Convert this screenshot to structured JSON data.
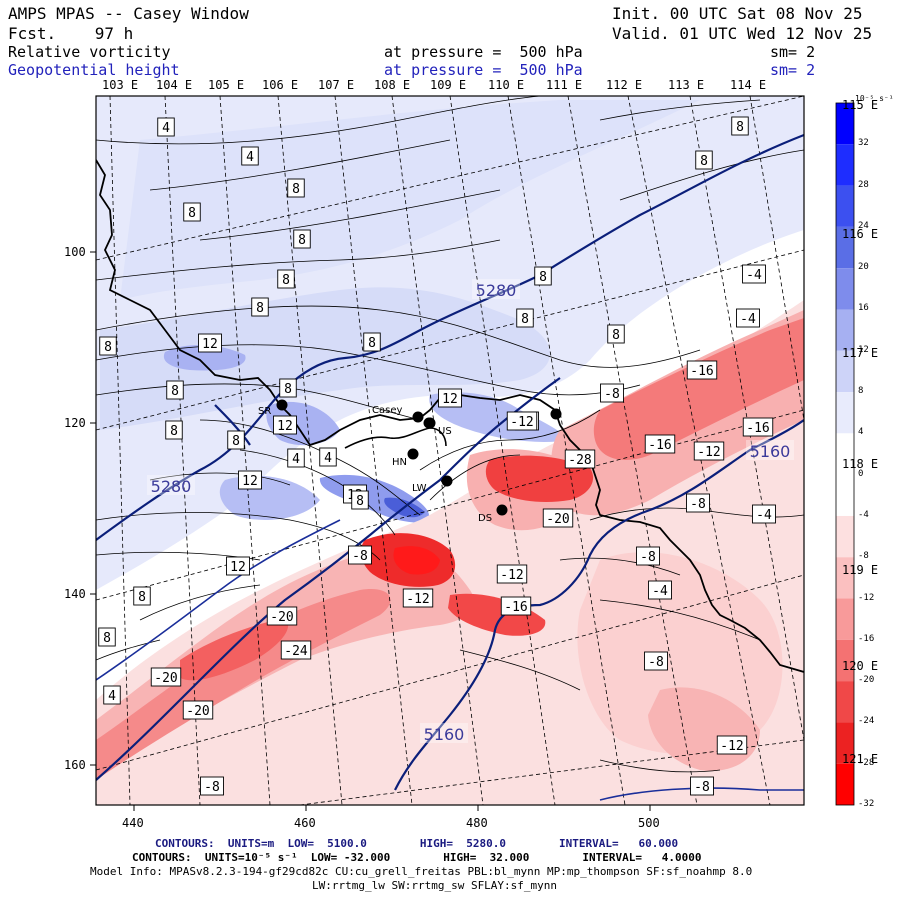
{
  "header": {
    "title": "AMPS MPAS -- Casey Window",
    "forecast": "Fcst.    97 h",
    "init": "Init. 00 UTC Sat 08 Nov 25",
    "valid": "Valid. 01 UTC Wed 12 Nov 25",
    "field1": {
      "name": "Relative vorticity",
      "level": "at pressure =  500 hPa",
      "sm": "sm= 2"
    },
    "field2": {
      "name": "Geopotential height",
      "level": "at pressure =  500 hPa",
      "sm": "sm= 2"
    }
  },
  "axes": {
    "top_lon_labels": [
      "103 E",
      "104 E",
      "105 E",
      "106 E",
      "107 E",
      "108 E",
      "109 E",
      "110 E",
      "111 E",
      "112 E",
      "113 E",
      "114 E"
    ],
    "right_lon_labels": [
      "115 E",
      "116 E",
      "117 E",
      "118 E",
      "119 E",
      "120 E",
      "121 E"
    ],
    "y_ticks": [
      "100",
      "120",
      "140",
      "160"
    ],
    "x_ticks": [
      "440",
      "460",
      "480",
      "500"
    ]
  },
  "colorbar": {
    "unit": "10⁻⁵ s⁻¹",
    "labels": [
      "32",
      "28",
      "24",
      "20",
      "16",
      "12",
      "8",
      "4",
      "0",
      "-4",
      "-8",
      "-12",
      "-16",
      "-20",
      "-24",
      "-28",
      "-32"
    ],
    "colors": [
      "#0000ff",
      "#1e2dff",
      "#3c50f0",
      "#5a6ee6",
      "#7e8cec",
      "#a6b0f2",
      "#cdd3f8",
      "#e8ebfc",
      "#ffffff",
      "#ffffff",
      "#fde0e0",
      "#fbc0c0",
      "#f89a9a",
      "#f47272",
      "#f04848",
      "#ec2222",
      "#ff0000"
    ]
  },
  "map": {
    "height_contours": [
      "5280",
      "5280",
      "5160",
      "5160"
    ],
    "vorticity_labels": [
      "4",
      "4",
      "8",
      "8",
      "8",
      "8",
      "8",
      "8",
      "8",
      "8",
      "8",
      "8",
      "8",
      "8",
      "8",
      "8",
      "8",
      "8",
      "8",
      "8",
      "12",
      "12",
      "12",
      "12",
      "12",
      "12",
      "12",
      "4",
      "4",
      "4",
      "8",
      "-4",
      "-4",
      "-8",
      "-8",
      "-8",
      "-8",
      "-8",
      "-8",
      "-12",
      "-12",
      "-12",
      "-12",
      "-12",
      "-16",
      "-16",
      "-16",
      "-16",
      "-20",
      "-20",
      "-20",
      "-20",
      "-24",
      "-28",
      "-4",
      "-4",
      "-8"
    ],
    "stations": [
      "SR",
      "Casey",
      "US",
      "HN",
      "LW",
      "DS"
    ]
  },
  "footer": {
    "line1_label": "CONTOURS:  UNITS=m  LOW=  5100.0        HIGH=  5280.0        INTERVAL=   60.000",
    "line2_label": "CONTOURS:  UNITS=10⁻⁵ s⁻¹  LOW= -32.000        HIGH=  32.000        INTERVAL=   4.0000",
    "line3": "Model Info: MPASv8.2.3-194-gf29cd82c CU:cu_grell_freitas PBL:bl_mynn MP:mp_thompson SF:sf_noahmp 8.0",
    "line4": "LW:rrtmg_lw SW:rrtmg_sw SFLAY:sf_mynn"
  }
}
